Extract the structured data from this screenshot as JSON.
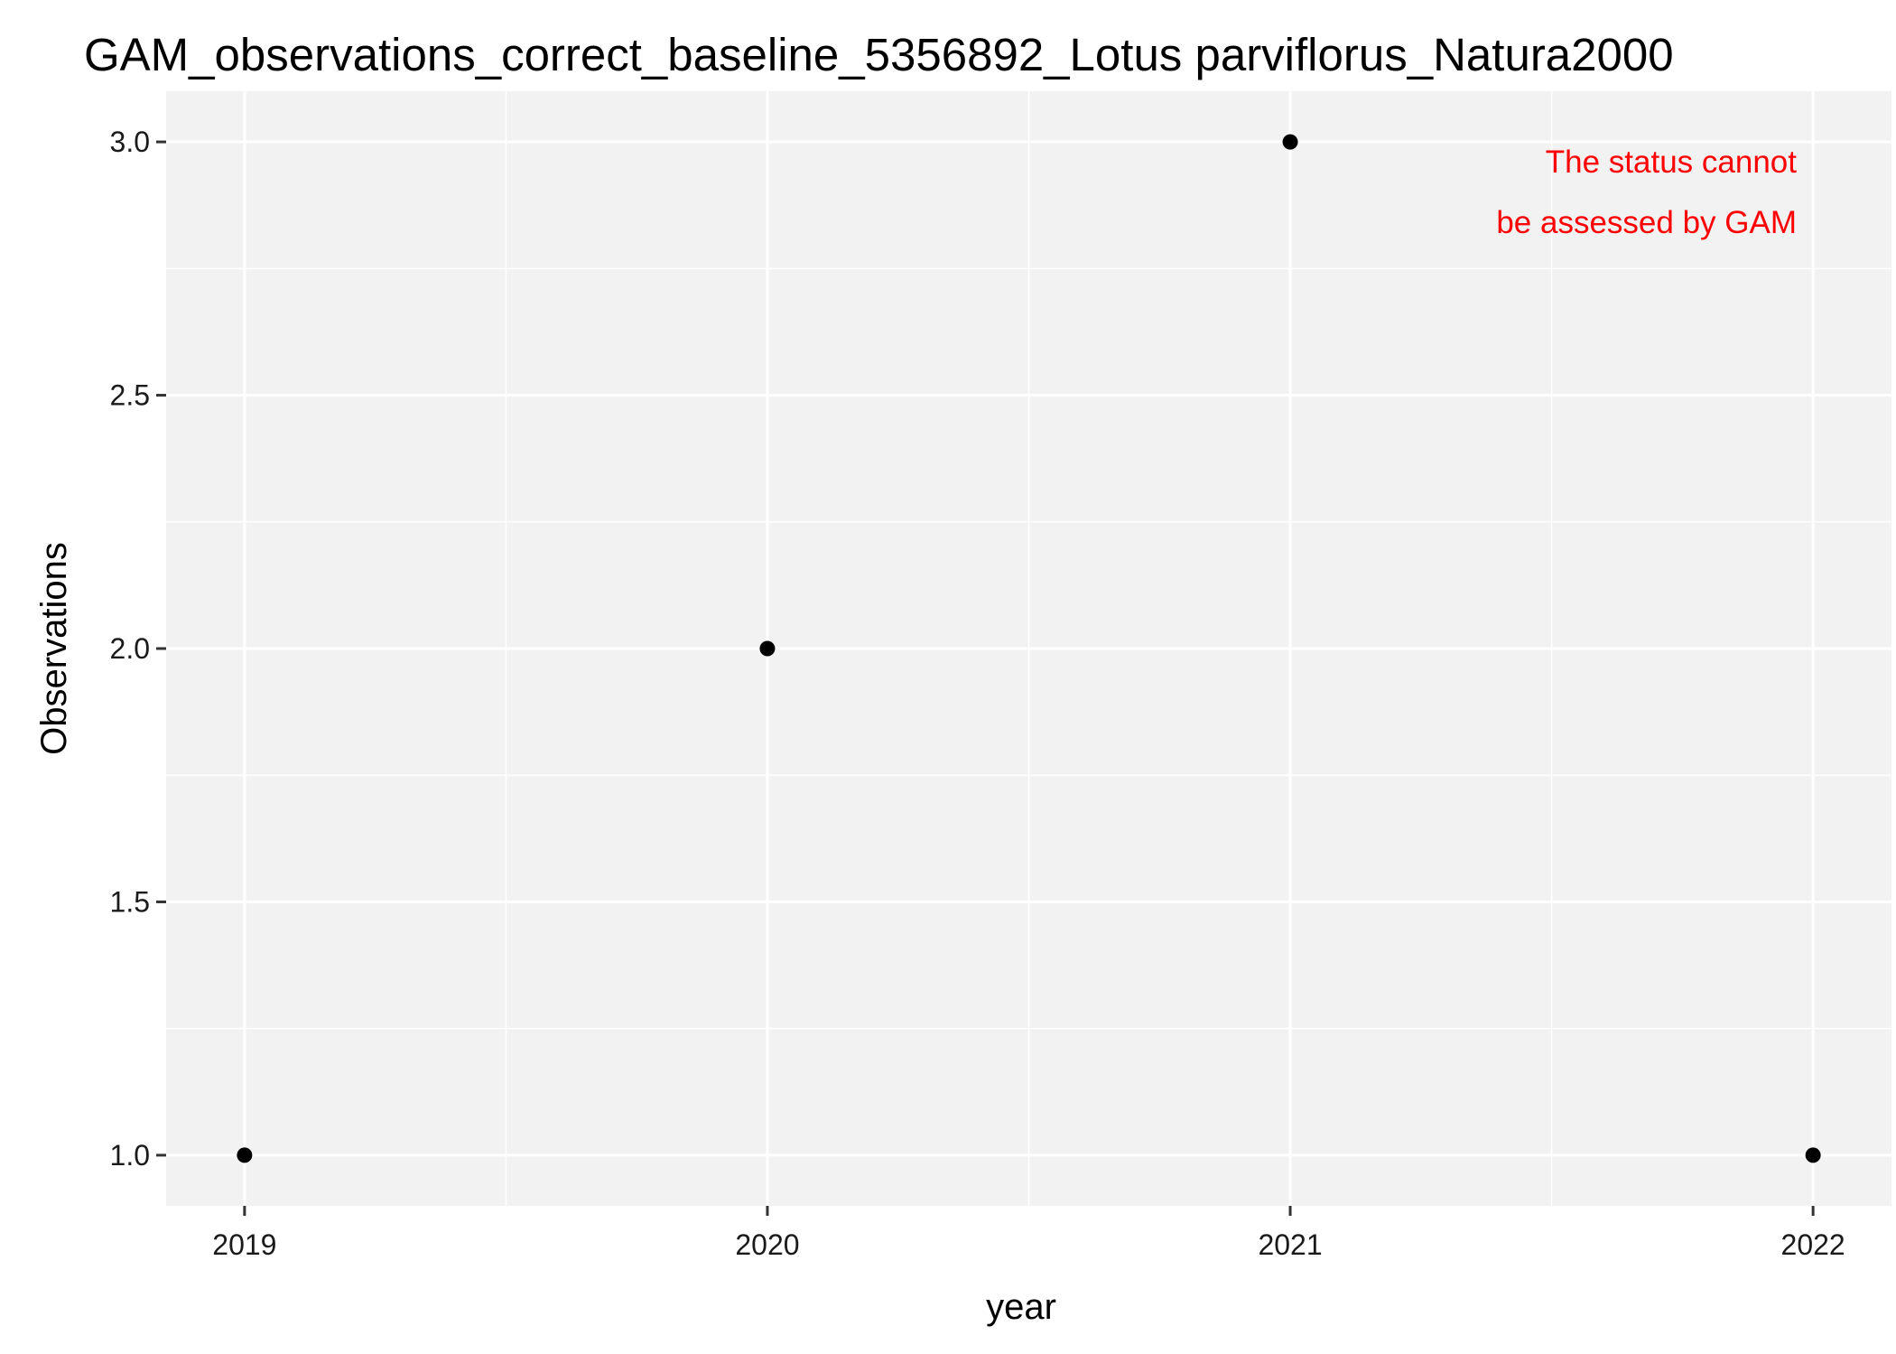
{
  "chart_data": {
    "type": "scatter",
    "title": "GAM_observations_correct_baseline_5356892_Lotus parviflorus_Natura2000",
    "xlabel": "year",
    "ylabel": "Observations",
    "x": [
      2019,
      2020,
      2021,
      2022
    ],
    "y": [
      1,
      2,
      3,
      1
    ],
    "xlim": [
      2018.85,
      2022.15
    ],
    "ylim": [
      0.9,
      3.1
    ],
    "x_ticks": [
      2019,
      2020,
      2021,
      2022
    ],
    "x_tick_labels": [
      "2019",
      "2020",
      "2021",
      "2022"
    ],
    "y_ticks": [
      1.0,
      1.5,
      2.0,
      2.5,
      3.0
    ],
    "y_tick_labels": [
      "1.0",
      "1.5",
      "2.0",
      "2.5",
      "3.0"
    ],
    "annotation": [
      "The status cannot",
      "be assessed by GAM"
    ],
    "annotation_position": "top-right",
    "grid": true,
    "legend": "none",
    "colors": {
      "panel_background": "#f2f2f2",
      "grid": "#ffffff",
      "point": "#000000",
      "annotation": "#ff0000"
    }
  }
}
